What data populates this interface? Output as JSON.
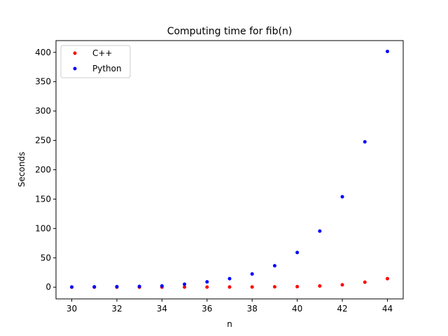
{
  "chart_data": {
    "type": "scatter",
    "title": "Computing time for fib(n)",
    "xlabel": "n",
    "ylabel": "Seconds",
    "xlim": [
      29.3,
      44.7
    ],
    "ylim": [
      -20,
      420
    ],
    "x_ticks": [
      30,
      32,
      34,
      36,
      38,
      40,
      42,
      44
    ],
    "y_ticks": [
      0,
      50,
      100,
      150,
      200,
      250,
      300,
      350,
      400
    ],
    "grid": false,
    "legend_position": "top-left",
    "x": [
      30,
      31,
      32,
      33,
      34,
      35,
      36,
      37,
      38,
      39,
      40,
      41,
      42,
      43,
      44
    ],
    "series": [
      {
        "name": "C++",
        "color": "#ff0000",
        "values": [
          0.01,
          0.01,
          0.02,
          0.03,
          0.05,
          0.08,
          0.13,
          0.2,
          0.33,
          0.53,
          0.86,
          2.0,
          4.0,
          8.5,
          14.5
        ]
      },
      {
        "name": "Python",
        "color": "#0000ff",
        "values": [
          0.3,
          0.5,
          0.8,
          1.3,
          2.1,
          5.0,
          9.0,
          14.5,
          22.5,
          36.5,
          59.0,
          95.5,
          154.0,
          247.5,
          401.5
        ]
      }
    ]
  }
}
